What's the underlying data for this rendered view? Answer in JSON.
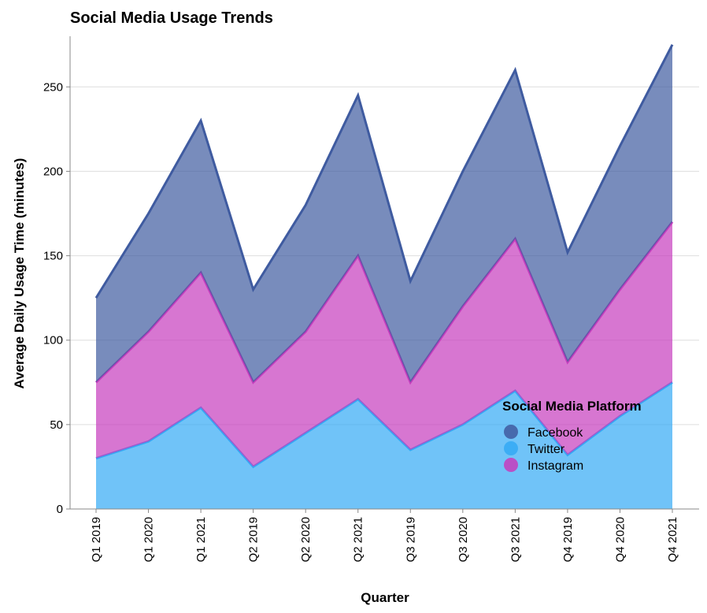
{
  "chart_data": {
    "type": "area",
    "stacked": true,
    "title": "Social Media Usage Trends",
    "xlabel": "Quarter",
    "ylabel": "Average Daily Usage Time (minutes)",
    "ylim": [
      0,
      280
    ],
    "yticks": [
      0,
      50,
      100,
      150,
      200,
      250
    ],
    "grid": true,
    "categories": [
      "Q1 2019",
      "Q1 2020",
      "Q1 2021",
      "Q2 2019",
      "Q2 2020",
      "Q2 2021",
      "Q3 2019",
      "Q3 2020",
      "Q3 2021",
      "Q4 2019",
      "Q4 2020",
      "Q4 2021"
    ],
    "series": [
      {
        "name": "Twitter",
        "color": "#33a9f5",
        "values": [
          30,
          40,
          60,
          25,
          45,
          65,
          35,
          50,
          70,
          32,
          55,
          75
        ]
      },
      {
        "name": "Instagram",
        "color": "#c63cbd",
        "values": [
          45,
          65,
          80,
          50,
          60,
          85,
          40,
          70,
          90,
          55,
          75,
          95
        ]
      },
      {
        "name": "Facebook",
        "color": "#3f5ba0",
        "values": [
          50,
          70,
          90,
          55,
          75,
          95,
          60,
          80,
          100,
          65,
          85,
          105
        ]
      }
    ],
    "legend": {
      "title": "Social Media Platform",
      "placement": "bottom-right",
      "items": [
        "Facebook",
        "Twitter",
        "Instagram"
      ]
    }
  }
}
